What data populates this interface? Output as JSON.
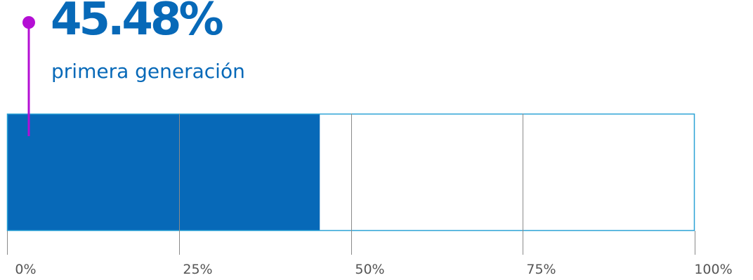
{
  "colors": {
    "fill": "#0769b8",
    "outline": "#2aa2d6",
    "gridline": "#8a8a8a",
    "marker": "#b40fd4",
    "text_accent": "#0769b8",
    "tick_text": "#555555"
  },
  "headline": {
    "value_text": "45.48%",
    "label": "primera generación"
  },
  "chart_data": {
    "type": "bar",
    "orientation": "horizontal",
    "value": 45.48,
    "xlim": [
      0,
      100
    ],
    "ticks": [
      0,
      25,
      50,
      75,
      100
    ],
    "tick_labels": [
      "0%",
      "25%",
      "50%",
      "75%",
      "100%"
    ],
    "grid": true
  }
}
